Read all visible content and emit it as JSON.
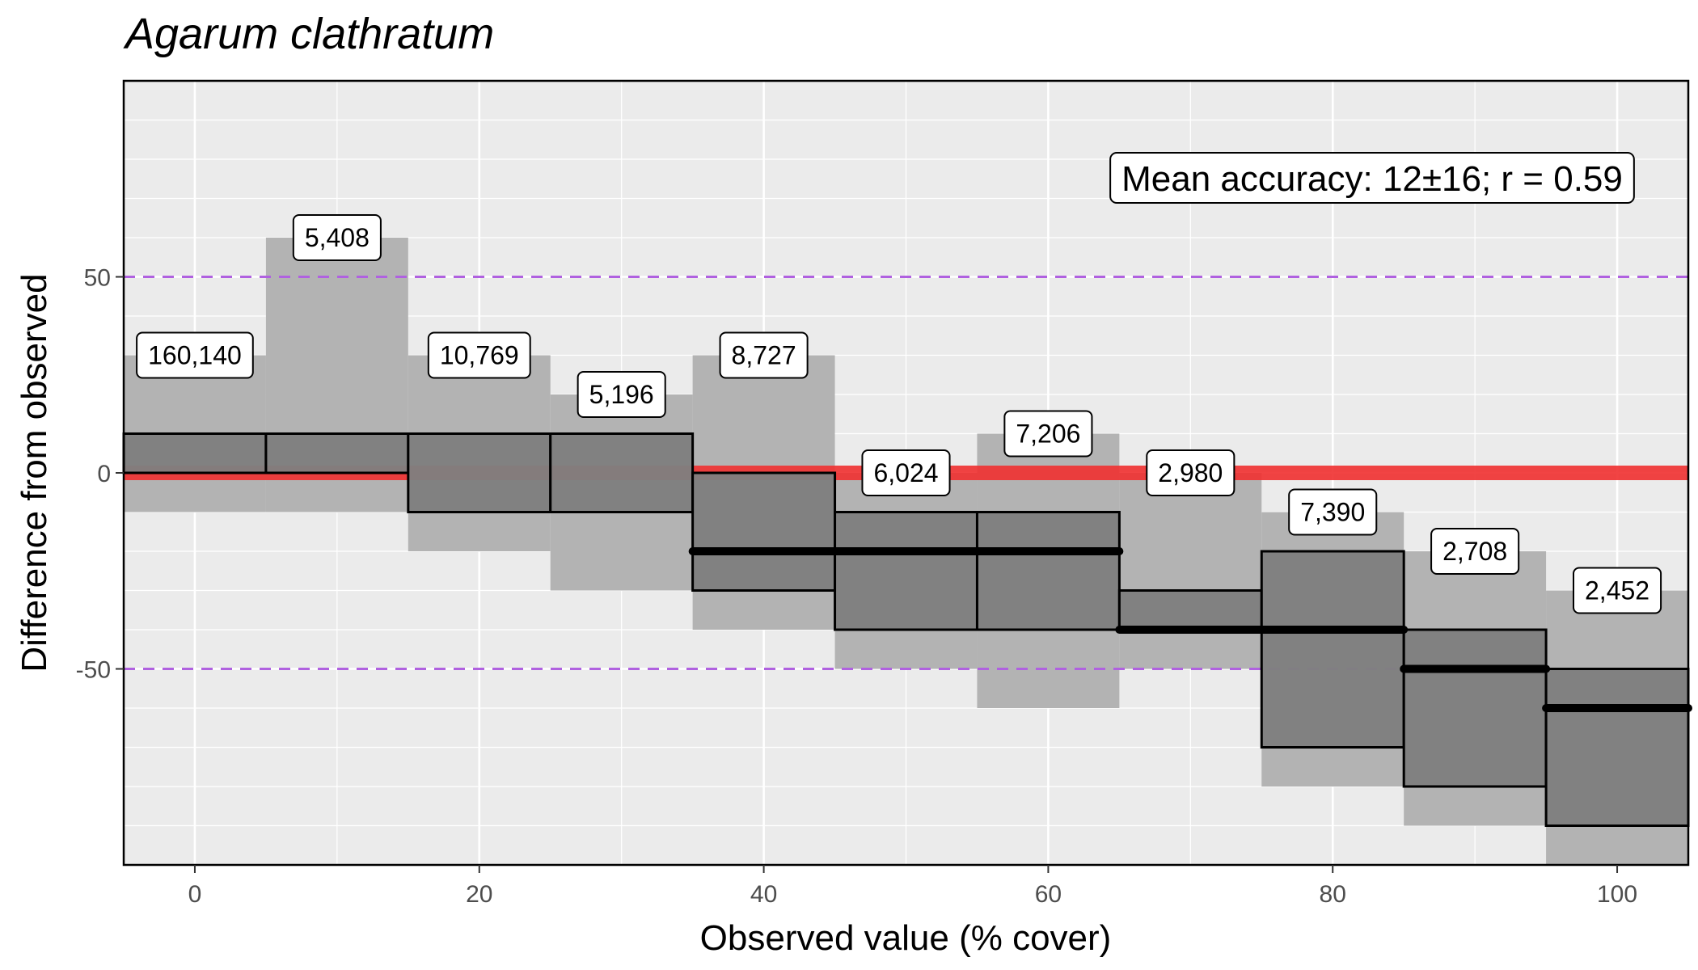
{
  "chart_data": {
    "type": "bar",
    "title": "Agarum clathratum",
    "xlabel": "Observed value (% cover)",
    "ylabel": "Difference from observed",
    "xlim": [
      -5,
      105
    ],
    "ylim": [
      -100,
      100
    ],
    "x_ticks": [
      0,
      20,
      40,
      60,
      80,
      100
    ],
    "y_ticks": [
      -50,
      0,
      50
    ],
    "y_tick_labels": [
      "-50",
      "0",
      "50"
    ],
    "reference_lines": {
      "zero_color": "#f03030",
      "dashed_at": [
        50,
        -50
      ],
      "dashed_color": "#b061e0"
    },
    "annotation": "Mean accuracy: 12±16; r = 0.59",
    "bins": [
      {
        "x": 0,
        "outer": [
          -10,
          30
        ],
        "inner": [
          0,
          10
        ],
        "median": 0,
        "count": "160,140"
      },
      {
        "x": 10,
        "outer": [
          -10,
          60
        ],
        "inner": [
          0,
          10
        ],
        "median": 0,
        "count": "5,408"
      },
      {
        "x": 20,
        "outer": [
          -20,
          30
        ],
        "inner": [
          -10,
          10
        ],
        "median": 0,
        "count": "10,769"
      },
      {
        "x": 30,
        "outer": [
          -30,
          20
        ],
        "inner": [
          -10,
          10
        ],
        "median": 0,
        "count": "5,196"
      },
      {
        "x": 40,
        "outer": [
          -40,
          30
        ],
        "inner": [
          -30,
          0
        ],
        "median": -20,
        "count": "8,727"
      },
      {
        "x": 50,
        "outer": [
          -50,
          0
        ],
        "inner": [
          -40,
          -10
        ],
        "median": -20,
        "count": "6,024"
      },
      {
        "x": 60,
        "outer": [
          -60,
          10
        ],
        "inner": [
          -40,
          -10
        ],
        "median": -20,
        "count": "7,206"
      },
      {
        "x": 70,
        "outer": [
          -50,
          0
        ],
        "inner": [
          -40,
          -30
        ],
        "median": -40,
        "count": "2,980"
      },
      {
        "x": 80,
        "outer": [
          -80,
          -10
        ],
        "inner": [
          -70,
          -20
        ],
        "median": -40,
        "count": "7,390"
      },
      {
        "x": 90,
        "outer": [
          -90,
          -20
        ],
        "inner": [
          -80,
          -40
        ],
        "median": -50,
        "count": "2,708"
      },
      {
        "x": 100,
        "outer": [
          -100,
          -30
        ],
        "inner": [
          -90,
          -50
        ],
        "median": -60,
        "count": "2,452"
      }
    ]
  }
}
